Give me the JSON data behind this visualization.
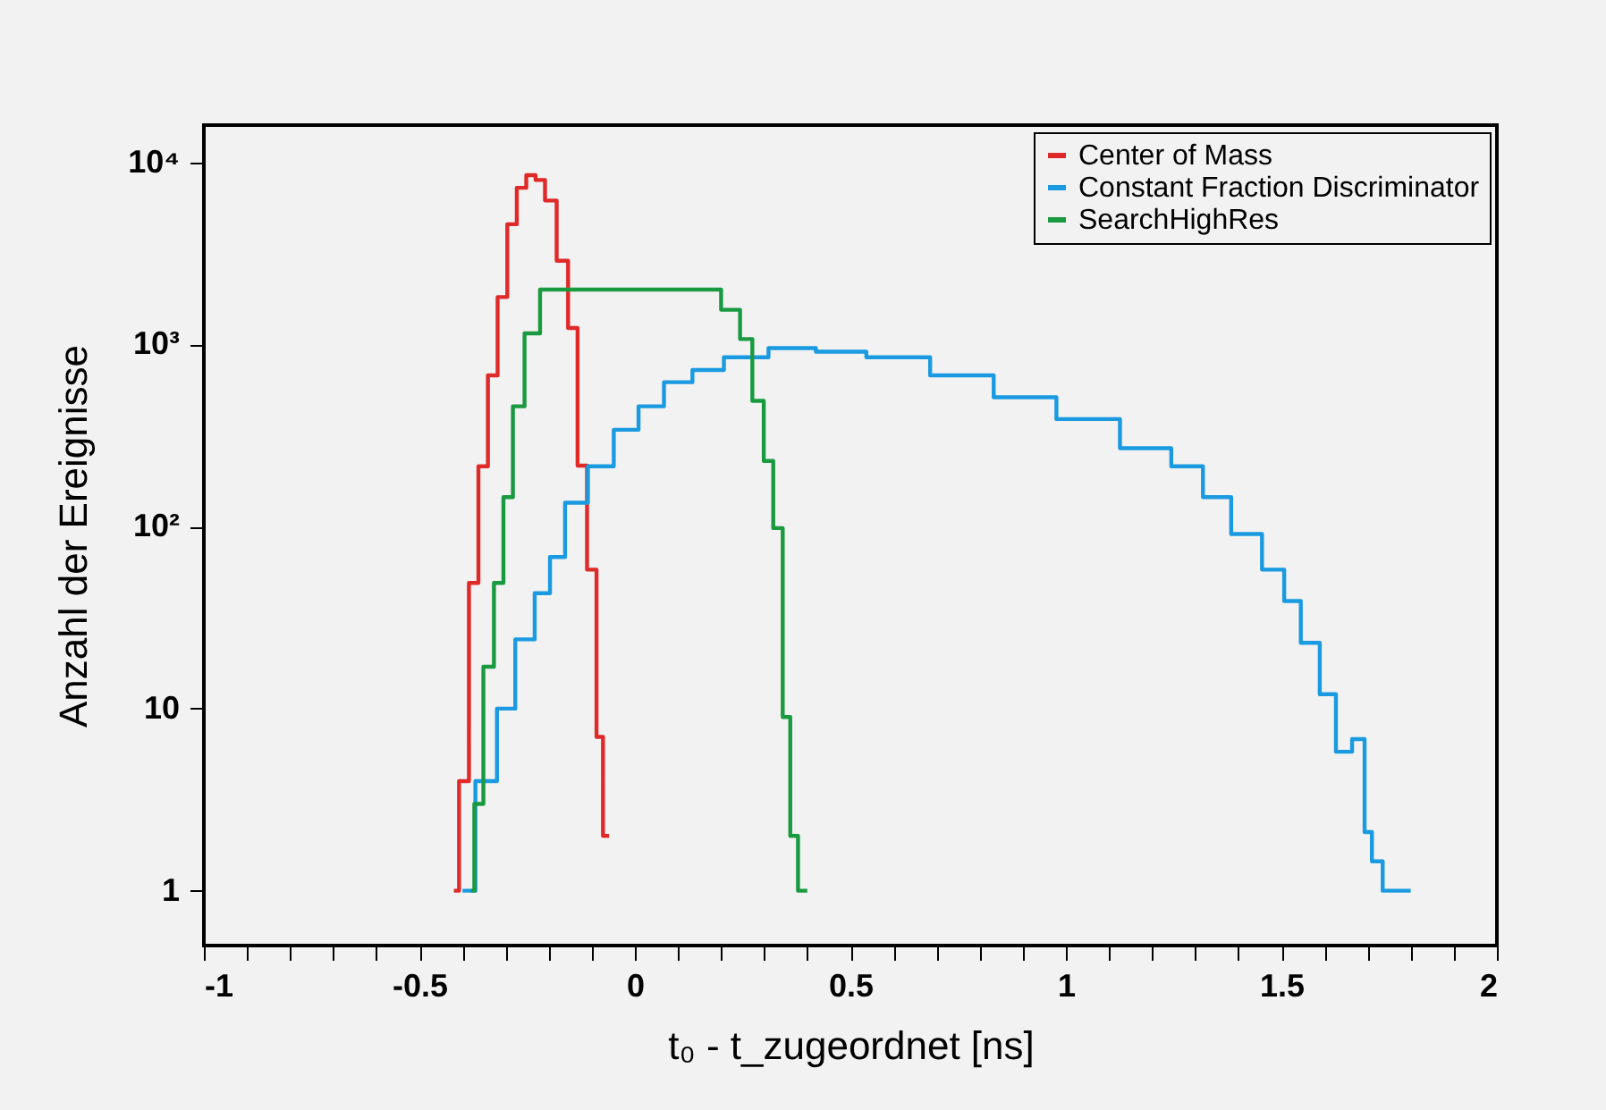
{
  "chart_data": {
    "type": "step",
    "xlabel": "t₀ - t_zugeordnet [ns]",
    "ylabel": "Anzahl der Ereignisse",
    "log": "y",
    "legend": "top right",
    "grid": false,
    "xlim": [
      -1,
      2
    ],
    "ylim": [
      0.5,
      16000
    ],
    "xticks": [
      -1,
      {
        "value": -0.9,
        "label": null
      },
      {
        "value": -0.8,
        "label": null
      },
      {
        "value": -0.7,
        "label": null
      },
      {
        "value": -0.6,
        "label": null
      },
      -0.5,
      {
        "value": -0.4,
        "label": null
      },
      {
        "value": -0.3,
        "label": null
      },
      {
        "value": -0.2,
        "label": null
      },
      {
        "value": -0.1,
        "label": null
      },
      0,
      {
        "value": 0.1,
        "label": null
      },
      {
        "value": 0.2,
        "label": null
      },
      {
        "value": 0.3,
        "label": null
      },
      {
        "value": 0.4,
        "label": null
      },
      0.5,
      {
        "value": 0.6,
        "label": null
      },
      {
        "value": 0.7,
        "label": null
      },
      {
        "value": 0.8,
        "label": null
      },
      {
        "value": 0.9,
        "label": null
      },
      1,
      {
        "value": 1.1,
        "label": null
      },
      {
        "value": 1.2,
        "label": null
      },
      {
        "value": 1.3,
        "label": null
      },
      {
        "value": 1.4,
        "label": null
      },
      1.5,
      {
        "value": 1.6,
        "label": null
      },
      {
        "value": 1.7,
        "label": null
      },
      {
        "value": 1.8,
        "label": null
      },
      {
        "value": 1.9,
        "label": null
      },
      2
    ],
    "yticks": [
      1,
      10,
      {
        "value": 100,
        "label": "10²"
      },
      {
        "value": 1000,
        "label": "10³"
      },
      {
        "value": 10000,
        "label": "10⁴"
      }
    ],
    "series": [
      {
        "name": "Center of Mass",
        "color": "#e02a2a",
        "x": [
          -0.42,
          -0.396,
          -0.374,
          -0.352,
          -0.33,
          -0.307,
          -0.285,
          -0.263,
          -0.241,
          -0.22,
          -0.197,
          -0.166,
          -0.144,
          -0.122,
          -0.1,
          -0.078,
          -0.07,
          -0.06
        ],
        "values": [
          1,
          4,
          49,
          214,
          676,
          1820,
          4570,
          7240,
          8500,
          8000,
          6170,
          2880,
          1230,
          216,
          58,
          7,
          2,
          2
        ]
      },
      {
        "name": "Constant Fraction Discriminator",
        "color": "#1a9ae0",
        "x": [
          -0.4,
          -0.34,
          -0.3,
          -0.255,
          -0.21,
          -0.184,
          -0.14,
          -0.078,
          -0.02,
          0.037,
          0.098,
          0.169,
          0.244,
          0.376,
          0.464,
          0.61,
          0.76,
          0.905,
          1.051,
          1.2,
          1.289,
          1.347,
          1.42,
          1.49,
          1.523,
          1.567,
          1.611,
          1.642,
          1.686,
          1.7,
          1.72,
          1.75,
          1.8
        ],
        "values": [
          1,
          4,
          10,
          24,
          43,
          68,
          135,
          214,
          340,
          457,
          620,
          724,
          850,
          955,
          912,
          850,
          676,
          513,
          389,
          269,
          214,
          145,
          91,
          58,
          39,
          23,
          12,
          5.8,
          6.8,
          2.1,
          1.45,
          1,
          1
        ]
      },
      {
        "name": "SearchHighRes",
        "color": "#1a9a40",
        "x": [
          -0.38,
          -0.365,
          -0.338,
          -0.316,
          -0.294,
          -0.272,
          -0.24,
          -0.2,
          -0.1,
          0,
          0.1,
          0.169,
          0.231,
          0.257,
          0.288,
          0.31,
          0.332,
          0.354,
          0.367,
          0.39,
          0.4
        ],
        "values": [
          1,
          3,
          17,
          49,
          145,
          457,
          1150,
          2000,
          2000,
          2000,
          2000,
          2000,
          1550,
          1070,
          490,
          229,
          98,
          9,
          2,
          1,
          1
        ]
      }
    ]
  }
}
